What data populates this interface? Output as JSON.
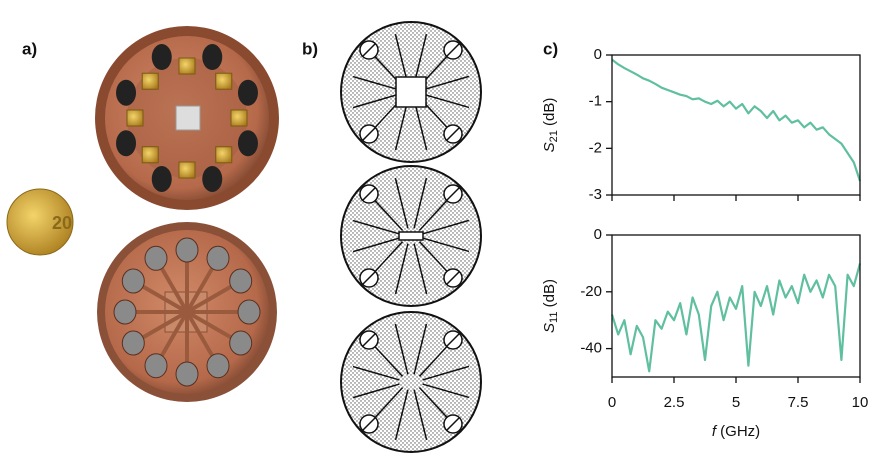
{
  "panels": {
    "a": "a)",
    "b": "b)",
    "c": "c)"
  },
  "chart_data": [
    {
      "type": "line",
      "ylabel": {
        "symbol": "S",
        "subscript": "21",
        "unit": " (dB)"
      },
      "x": [
        0,
        0.25,
        0.5,
        0.75,
        1,
        1.25,
        1.5,
        1.75,
        2,
        2.25,
        2.5,
        2.75,
        3,
        3.25,
        3.5,
        3.75,
        4,
        4.25,
        4.5,
        4.75,
        5,
        5.25,
        5.5,
        5.75,
        6,
        6.25,
        6.5,
        6.75,
        7,
        7.25,
        7.5,
        7.75,
        8,
        8.25,
        8.5,
        8.75,
        9,
        9.25,
        9.5,
        9.75,
        10
      ],
      "series": [
        {
          "color": "#5fbf9f",
          "values": [
            -0.1,
            -0.2,
            -0.28,
            -0.35,
            -0.42,
            -0.5,
            -0.55,
            -0.62,
            -0.7,
            -0.75,
            -0.8,
            -0.85,
            -0.88,
            -0.95,
            -0.93,
            -1.0,
            -1.05,
            -0.98,
            -1.1,
            -1.0,
            -1.15,
            -1.05,
            -1.25,
            -1.1,
            -1.2,
            -1.35,
            -1.2,
            -1.4,
            -1.3,
            -1.45,
            -1.4,
            -1.55,
            -1.45,
            -1.6,
            -1.55,
            -1.7,
            -1.8,
            -1.9,
            -2.1,
            -2.3,
            -2.7
          ]
        }
      ],
      "xlim": [
        0,
        10
      ],
      "xticks": [
        0,
        2.5,
        5,
        7.5,
        10
      ],
      "ylim": [
        -3,
        0
      ],
      "yticks": [
        0,
        -1,
        -2,
        -3
      ]
    },
    {
      "type": "line",
      "ylabel": {
        "symbol": "S",
        "subscript": "11",
        "unit": " (dB)"
      },
      "xlabel": {
        "symbol": "f",
        "unit": " (GHz)"
      },
      "x": [
        0,
        0.25,
        0.5,
        0.75,
        1,
        1.25,
        1.5,
        1.75,
        2,
        2.25,
        2.5,
        2.75,
        3,
        3.25,
        3.5,
        3.75,
        4,
        4.25,
        4.5,
        4.75,
        5,
        5.25,
        5.5,
        5.75,
        6,
        6.25,
        6.5,
        6.75,
        7,
        7.25,
        7.5,
        7.75,
        8,
        8.25,
        8.5,
        8.75,
        9,
        9.25,
        9.5,
        9.75,
        10
      ],
      "series": [
        {
          "color": "#5fbf9f",
          "values": [
            -28,
            -35,
            -30,
            -42,
            -32,
            -36,
            -48,
            -30,
            -33,
            -27,
            -30,
            -24,
            -35,
            -22,
            -28,
            -44,
            -25,
            -20,
            -30,
            -22,
            -26,
            -18,
            -46,
            -20,
            -25,
            -18,
            -28,
            -16,
            -22,
            -18,
            -24,
            -14,
            -20,
            -16,
            -22,
            -14,
            -18,
            -44,
            -14,
            -18,
            -10
          ]
        }
      ],
      "xlim": [
        0,
        10
      ],
      "xticks": [
        0,
        2.5,
        5,
        7.5,
        10
      ],
      "ylim": [
        -50,
        0
      ],
      "yticks": [
        0,
        -20,
        -40
      ]
    }
  ]
}
